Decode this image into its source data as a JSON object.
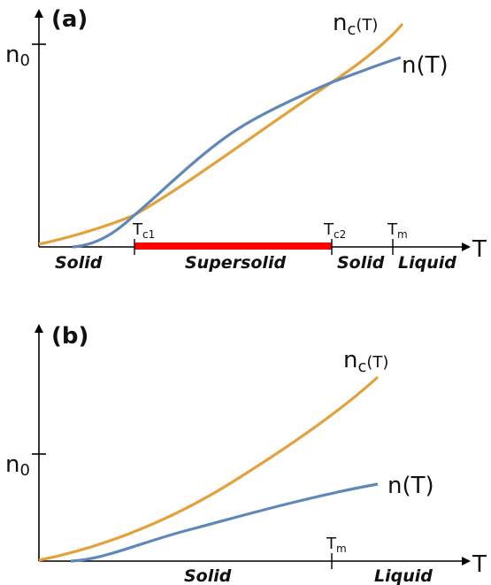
{
  "colors": {
    "n_curve": "#5f87b8",
    "nc_curve": "#e3a13b",
    "supersolid_band": "#ff0000",
    "axis": "#000000"
  },
  "panel_a": {
    "panel_label": "(a)",
    "y_tick_label": "n",
    "y_tick_sub": "0",
    "x_axis_label": "T",
    "tc1_label": "T",
    "tc1_sub": "c1",
    "tc2_label": "T",
    "tc2_sub": "c2",
    "tm_label": "T",
    "tm_sub": "m",
    "nc_curve_label_main": "n",
    "nc_curve_label_sub": "c",
    "nc_curve_label_tail": "(T)",
    "n_curve_label": "n(T)",
    "regions": [
      "Solid",
      "Supersolid",
      "Solid",
      "Liquid"
    ]
  },
  "panel_b": {
    "panel_label": "(b)",
    "y_tick_label": "n",
    "y_tick_sub": "0",
    "x_axis_label": "T",
    "tm_label": "T",
    "tm_sub": "m",
    "nc_curve_label_main": "n",
    "nc_curve_label_sub": "c",
    "nc_curve_label_tail": "(T)",
    "n_curve_label": "n(T)",
    "regions": [
      "Solid",
      "Liquid"
    ]
  }
}
